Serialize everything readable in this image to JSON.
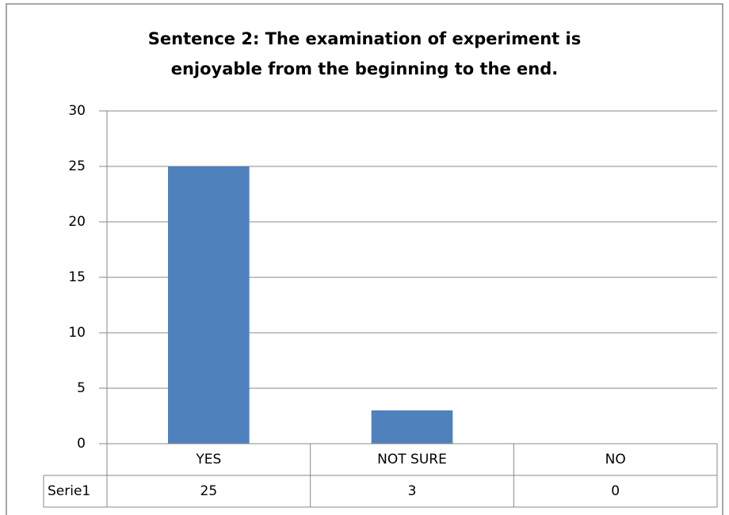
{
  "chart_data": {
    "type": "bar",
    "title": [
      "Sentence 2: The examination of experiment is",
      "enjoyable from the beginning to the end."
    ],
    "categories": [
      "YES",
      "NOT SURE",
      "NO"
    ],
    "series": [
      {
        "name": "Serie1",
        "color": "#4f81bd",
        "values": [
          25,
          3,
          0
        ]
      }
    ],
    "ylim": [
      0,
      30
    ],
    "yticks": [
      0,
      5,
      10,
      15,
      20,
      25,
      30
    ],
    "grid": true,
    "data_table": true
  }
}
